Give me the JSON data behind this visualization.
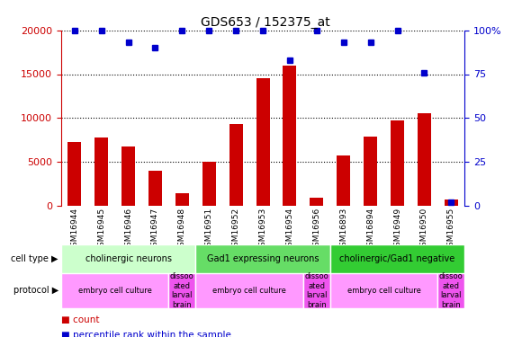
{
  "title": "GDS653 / 152375_at",
  "samples": [
    "GSM16944",
    "GSM16945",
    "GSM16946",
    "GSM16947",
    "GSM16948",
    "GSM16951",
    "GSM16952",
    "GSM16953",
    "GSM16954",
    "GSM16956",
    "GSM16893",
    "GSM16894",
    "GSM16949",
    "GSM16950",
    "GSM16955"
  ],
  "counts": [
    7300,
    7800,
    6700,
    4000,
    1400,
    5000,
    9300,
    14500,
    16000,
    900,
    5700,
    7900,
    9700,
    10500,
    700
  ],
  "percentile": [
    100,
    100,
    93,
    90,
    100,
    100,
    100,
    100,
    83,
    100,
    93,
    93,
    100,
    76,
    2
  ],
  "ylim_left": [
    0,
    20000
  ],
  "ylim_right": [
    0,
    100
  ],
  "yticks_left": [
    0,
    5000,
    10000,
    15000,
    20000
  ],
  "yticks_right": [
    0,
    25,
    50,
    75,
    100
  ],
  "bar_color": "#cc0000",
  "dot_color": "#0000cc",
  "cell_type_groups": [
    {
      "label": "cholinergic neurons",
      "start": 0,
      "end": 5,
      "color": "#ccffcc"
    },
    {
      "label": "Gad1 expressing neurons",
      "start": 5,
      "end": 10,
      "color": "#66dd66"
    },
    {
      "label": "cholinergic/Gad1 negative",
      "start": 10,
      "end": 15,
      "color": "#33cc33"
    }
  ],
  "protocol_groups": [
    {
      "label": "embryo cell culture",
      "start": 0,
      "end": 4,
      "color": "#ff99ff"
    },
    {
      "label": "dissoo\nated\nlarval\nbrain",
      "start": 4,
      "end": 5,
      "color": "#ee55ee"
    },
    {
      "label": "embryo cell culture",
      "start": 5,
      "end": 9,
      "color": "#ff99ff"
    },
    {
      "label": "dissoo\nated\nlarval\nbrain",
      "start": 9,
      "end": 10,
      "color": "#ee55ee"
    },
    {
      "label": "embryo cell culture",
      "start": 10,
      "end": 14,
      "color": "#ff99ff"
    },
    {
      "label": "dissoo\nated\nlarval\nbrain",
      "start": 14,
      "end": 15,
      "color": "#ee55ee"
    }
  ],
  "xtick_bg": "#d0d0d0",
  "legend_count_color": "#cc0000",
  "legend_pct_color": "#0000cc"
}
